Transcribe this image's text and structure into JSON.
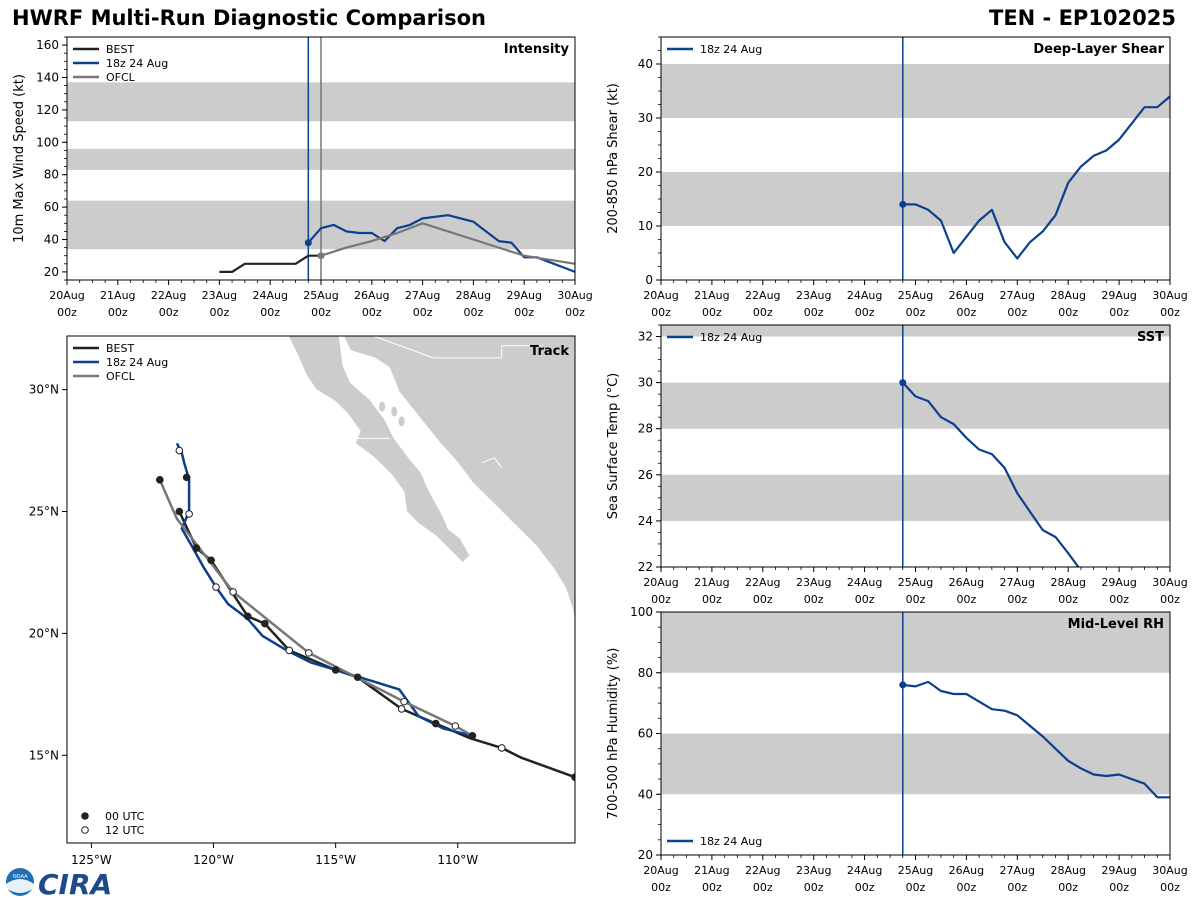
{
  "header": {
    "title_left": "HWRF Multi-Run Diagnostic Comparison",
    "title_right": "TEN - EP102025"
  },
  "colors": {
    "best": "#222222",
    "run": "#0d3f8f",
    "ofcl": "#777777",
    "band": "#cccccc",
    "land": "#cccccc"
  },
  "time_axis": {
    "ticks": [
      {
        "day": "20Aug",
        "hour": "00z"
      },
      {
        "day": "21Aug",
        "hour": "00z"
      },
      {
        "day": "22Aug",
        "hour": "00z"
      },
      {
        "day": "23Aug",
        "hour": "00z"
      },
      {
        "day": "24Aug",
        "hour": "00z"
      },
      {
        "day": "25Aug",
        "hour": "00z"
      },
      {
        "day": "26Aug",
        "hour": "00z"
      },
      {
        "day": "27Aug",
        "hour": "00z"
      },
      {
        "day": "28Aug",
        "hour": "00z"
      },
      {
        "day": "29Aug",
        "hour": "00z"
      },
      {
        "day": "30Aug",
        "hour": "00z"
      }
    ]
  },
  "chart_data": [
    {
      "id": "intensity",
      "type": "line",
      "title": "Intensity",
      "ylabel": "10m Max Wind Speed (kt)",
      "xlim": [
        0,
        10
      ],
      "ylim": [
        15,
        165
      ],
      "yticks": [
        20,
        40,
        60,
        80,
        100,
        120,
        140,
        160
      ],
      "bands": [
        [
          34,
          64
        ],
        [
          83,
          96
        ],
        [
          113,
          137
        ]
      ],
      "vlines": [
        {
          "x": 4.75,
          "series": "run"
        },
        {
          "x": 5.0,
          "series": "ofcl"
        }
      ],
      "legend": [
        "BEST",
        "18z 24 Aug",
        "OFCL"
      ],
      "series": [
        {
          "name": "BEST",
          "key": "best",
          "x": [
            3.0,
            3.25,
            3.5,
            3.75,
            4.0,
            4.25,
            4.5,
            4.75,
            5.0
          ],
          "y": [
            20,
            20,
            25,
            25,
            25,
            25,
            25,
            30,
            30
          ]
        },
        {
          "name": "18z 24 Aug",
          "key": "run",
          "x": [
            4.75,
            5.0,
            5.25,
            5.5,
            5.75,
            6.0,
            6.25,
            6.5,
            6.75,
            7.0,
            7.5,
            8.0,
            8.5,
            8.75,
            9.0,
            9.25,
            9.5,
            9.75,
            10.0
          ],
          "y": [
            38,
            47,
            49,
            45,
            44,
            44,
            39,
            47,
            49,
            53,
            55,
            51,
            39,
            38,
            29,
            29,
            26,
            23,
            20
          ],
          "marker_start": true
        },
        {
          "name": "OFCL",
          "key": "ofcl",
          "x": [
            5.0,
            5.5,
            6.0,
            6.5,
            7.0,
            8.0,
            9.0,
            10.0
          ],
          "y": [
            30,
            35,
            39,
            44,
            50,
            40,
            30,
            25
          ],
          "marker_start": true
        }
      ]
    },
    {
      "id": "shear",
      "type": "line",
      "title": "Deep-Layer Shear",
      "ylabel": "200-850 hPa Shear (kt)",
      "xlim": [
        0,
        10
      ],
      "ylim": [
        0,
        45
      ],
      "yticks": [
        0,
        10,
        20,
        30,
        40
      ],
      "bands": [
        [
          10,
          20
        ],
        [
          30,
          40
        ]
      ],
      "vlines": [
        {
          "x": 4.75,
          "series": "run"
        }
      ],
      "legend": [
        "18z 24 Aug"
      ],
      "series": [
        {
          "name": "18z 24 Aug",
          "key": "run",
          "x": [
            4.75,
            5.0,
            5.25,
            5.5,
            5.75,
            6.0,
            6.25,
            6.5,
            6.75,
            7.0,
            7.25,
            7.5,
            7.75,
            8.0,
            8.25,
            8.5,
            8.75,
            9.0,
            9.25,
            9.5,
            9.75,
            10.0
          ],
          "y": [
            14,
            14,
            13,
            11,
            5,
            8,
            11,
            13,
            7,
            4,
            7,
            9,
            12,
            18,
            21,
            23,
            24,
            26,
            29,
            32,
            32,
            34
          ],
          "marker_start": true
        }
      ]
    },
    {
      "id": "sst",
      "type": "line",
      "title": "SST",
      "ylabel": "Sea Surface Temp (°C)",
      "xlim": [
        0,
        10
      ],
      "ylim": [
        22,
        32.5
      ],
      "yticks": [
        22,
        24,
        26,
        28,
        30,
        32
      ],
      "bands": [
        [
          24,
          26
        ],
        [
          28,
          30
        ],
        [
          32,
          32.5
        ]
      ],
      "vlines": [
        {
          "x": 4.75,
          "series": "run"
        }
      ],
      "legend": [
        "18z 24 Aug"
      ],
      "series": [
        {
          "name": "18z 24 Aug",
          "key": "run",
          "x": [
            4.75,
            5.0,
            5.25,
            5.5,
            5.75,
            6.0,
            6.25,
            6.5,
            6.75,
            7.0,
            7.25,
            7.5,
            7.75,
            8.0,
            8.2
          ],
          "y": [
            30.0,
            29.4,
            29.2,
            28.5,
            28.2,
            27.6,
            27.1,
            26.9,
            26.3,
            25.2,
            24.4,
            23.6,
            23.3,
            22.6,
            22.0
          ],
          "marker_start": true
        }
      ]
    },
    {
      "id": "rh",
      "type": "line",
      "title": "Mid-Level RH",
      "ylabel": "700-500 hPa Humidity (%)",
      "xlim": [
        0,
        10
      ],
      "ylim": [
        20,
        100
      ],
      "yticks": [
        20,
        40,
        60,
        80,
        100
      ],
      "bands": [
        [
          40,
          60
        ],
        [
          80,
          100
        ]
      ],
      "vlines": [
        {
          "x": 4.75,
          "series": "run"
        }
      ],
      "legend": [
        "18z 24 Aug"
      ],
      "legend_position": "bottom-left",
      "series": [
        {
          "name": "18z 24 Aug",
          "key": "run",
          "x": [
            4.75,
            5.0,
            5.25,
            5.5,
            5.75,
            6.0,
            6.25,
            6.5,
            6.75,
            7.0,
            7.25,
            7.5,
            7.75,
            8.0,
            8.25,
            8.5,
            8.75,
            9.0,
            9.25,
            9.5,
            9.75,
            10.0
          ],
          "y": [
            76,
            75.5,
            77,
            74,
            73,
            73,
            70.5,
            68,
            67.5,
            66,
            62.5,
            59,
            55,
            51,
            48.5,
            46.5,
            46,
            46.5,
            45,
            43.5,
            39,
            39
          ],
          "marker_start": true
        }
      ]
    },
    {
      "id": "track",
      "type": "scatter",
      "title": "Track",
      "xlim": [
        -126,
        -105.2
      ],
      "ylim": [
        11.4,
        32.2
      ],
      "xticks": [
        {
          "value": -125,
          "label": "125°W"
        },
        {
          "value": -120,
          "label": "120°W"
        },
        {
          "value": -115,
          "label": "115°W"
        },
        {
          "value": -110,
          "label": "110°W"
        }
      ],
      "yticks": [
        {
          "value": 15,
          "label": "15°N"
        },
        {
          "value": 20,
          "label": "20°N"
        },
        {
          "value": 25,
          "label": "25°N"
        },
        {
          "value": 30,
          "label": "30°N"
        }
      ],
      "legend": [
        "BEST",
        "18z 24 Aug",
        "OFCL"
      ],
      "marker_legend": [
        "00 UTC",
        "12 UTC"
      ],
      "series": [
        {
          "name": "BEST",
          "key": "best",
          "lon": [
            -105.2,
            -107.4,
            -108.2,
            -109.5,
            -110.9,
            -112.3,
            -114.1,
            -115.0,
            -116.9,
            -117.9,
            -118.6,
            -120.1,
            -120.7,
            -121.4
          ],
          "lat": [
            14.1,
            14.9,
            15.3,
            15.7,
            16.3,
            16.9,
            18.2,
            18.5,
            19.3,
            20.4,
            20.7,
            23.0,
            23.5,
            25.0
          ]
        },
        {
          "name": "18z 24 Aug",
          "key": "run",
          "lon": [
            -109.4,
            -110.6,
            -111.6,
            -112.4,
            -115.0,
            -116.0,
            -117.0,
            -118.0,
            -118.6,
            -119.4,
            -119.9,
            -120.4,
            -120.9,
            -121.3,
            -121.0,
            -121.0,
            -121.2,
            -121.3,
            -121.5
          ],
          "lat": [
            15.8,
            16.1,
            16.6,
            17.7,
            18.5,
            18.8,
            19.3,
            19.9,
            20.6,
            21.2,
            21.9,
            22.7,
            23.6,
            24.3,
            25.0,
            26.3,
            27.0,
            27.4,
            27.8
          ],
          "markers": [
            {
              "lon": -109.4,
              "lat": 15.8,
              "kind": "filled"
            },
            {
              "lon": -116.9,
              "lat": 19.3,
              "kind": "open"
            },
            {
              "lon": -119.9,
              "lat": 21.9,
              "kind": "open"
            },
            {
              "lon": -121.0,
              "lat": 24.9,
              "kind": "open"
            },
            {
              "lon": -121.4,
              "lat": 27.5,
              "kind": "open"
            }
          ]
        },
        {
          "name": "OFCL",
          "key": "ofcl",
          "lon": [
            -109.4,
            -110.1,
            -112.2,
            -116.1,
            -119.2,
            -121.5,
            -122.2
          ],
          "lat": [
            15.8,
            16.2,
            17.2,
            19.2,
            21.7,
            24.7,
            26.3
          ],
          "markers": [
            {
              "lon": -110.1,
              "lat": 16.2,
              "kind": "open"
            },
            {
              "lon": -112.2,
              "lat": 17.2,
              "kind": "open"
            },
            {
              "lon": -116.1,
              "lat": 19.2,
              "kind": "open"
            },
            {
              "lon": -119.2,
              "lat": 21.7,
              "kind": "open"
            },
            {
              "lon": -122.2,
              "lat": 26.3,
              "kind": "filled"
            }
          ]
        },
        {
          "name": "BEST-markers",
          "key": "best",
          "markers": [
            {
              "lon": -105.2,
              "lat": 14.1,
              "kind": "filled"
            },
            {
              "lon": -108.2,
              "lat": 15.3,
              "kind": "open"
            },
            {
              "lon": -110.9,
              "lat": 16.3,
              "kind": "filled"
            },
            {
              "lon": -112.3,
              "lat": 16.9,
              "kind": "open"
            },
            {
              "lon": -114.1,
              "lat": 18.2,
              "kind": "filled"
            },
            {
              "lon": -115.0,
              "lat": 18.5,
              "kind": "filled"
            },
            {
              "lon": -117.9,
              "lat": 20.4,
              "kind": "filled"
            },
            {
              "lon": -118.6,
              "lat": 20.7,
              "kind": "filled"
            },
            {
              "lon": -120.1,
              "lat": 23.0,
              "kind": "filled"
            },
            {
              "lon": -120.7,
              "lat": 23.5,
              "kind": "filled"
            },
            {
              "lon": -121.4,
              "lat": 25.0,
              "kind": "filled"
            },
            {
              "lon": -121.1,
              "lat": 26.4,
              "kind": "filled"
            }
          ]
        }
      ]
    }
  ],
  "logo": {
    "text": "CIRA",
    "noaa_text": "NOAA"
  }
}
